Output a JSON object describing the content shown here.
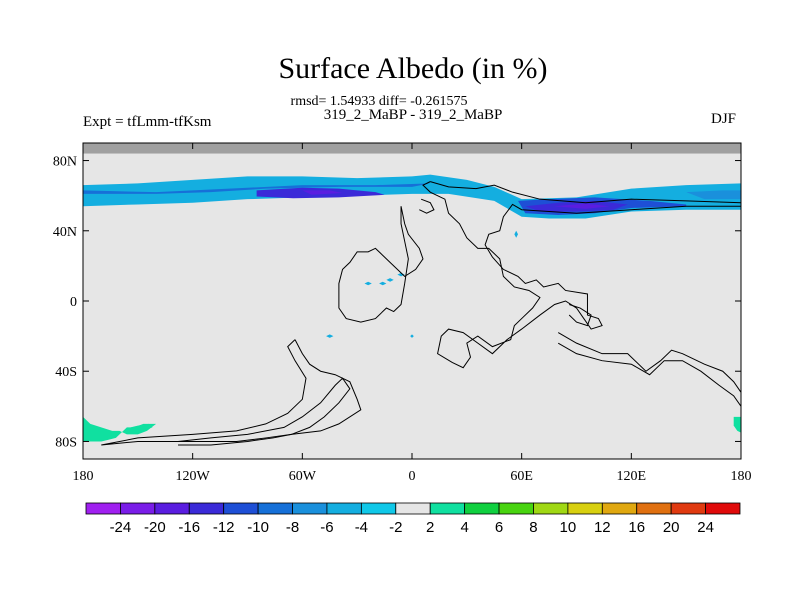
{
  "title": "Surface Albedo (in %)",
  "stats": "rmsd= 1.54933 diff= -0.261575",
  "subtitle": "319_2_MaBP - 319_2_MaBP",
  "left_label": "Expt = tfLmm-tfKsm",
  "right_label": "DJF",
  "chart_data": {
    "type": "heatmap",
    "title": "Surface Albedo (in %)",
    "x_axis": {
      "range": [
        -180,
        180
      ],
      "ticks": [
        {
          "value": -180,
          "label": "180"
        },
        {
          "value": -120,
          "label": "120W"
        },
        {
          "value": -60,
          "label": "60W"
        },
        {
          "value": 0,
          "label": "0"
        },
        {
          "value": 60,
          "label": "60E"
        },
        {
          "value": 120,
          "label": "120E"
        },
        {
          "value": 180,
          "label": "180"
        }
      ]
    },
    "y_axis": {
      "range": [
        -90,
        90
      ],
      "ticks": [
        {
          "value": 80,
          "label": "80N"
        },
        {
          "value": 40,
          "label": "40N"
        },
        {
          "value": 0,
          "label": "0"
        },
        {
          "value": -40,
          "label": "40S"
        },
        {
          "value": -80,
          "label": "80S"
        }
      ]
    },
    "missing_region": {
      "lat_min": 84,
      "lat_max": 90,
      "color": "#a0a0a0"
    },
    "background": {
      "level": "-2 to 2",
      "color": "#e6e6e6"
    },
    "colorbar": {
      "labels": [
        "-24",
        "-20",
        "-16",
        "-12",
        "-10",
        "-8",
        "-6",
        "-4",
        "-2",
        "2",
        "4",
        "6",
        "8",
        "10",
        "12",
        "16",
        "20",
        "24"
      ],
      "colors": [
        "#a020f0",
        "#7a1de8",
        "#5a1de0",
        "#3b2ad8",
        "#1e4fd6",
        "#1670d8",
        "#1a90dc",
        "#14aee0",
        "#10c8e8",
        "#e6e6e6",
        "#10e0a0",
        "#10d040",
        "#48d410",
        "#a0d814",
        "#d8d010",
        "#e0a810",
        "#e07010",
        "#e03a10",
        "#e00a0a"
      ]
    },
    "anomalies": [
      {
        "region": "northern mid-latitude band",
        "lat": [
          52,
          68
        ],
        "lon": [
          -180,
          180
        ],
        "range": "-4 to -24",
        "dominant": "-6 to -4"
      },
      {
        "region": "central-west band",
        "lat": [
          57,
          64
        ],
        "lon": [
          -85,
          -15
        ],
        "range": "-12 to -16"
      },
      {
        "region": "eastern band",
        "lat": [
          48,
          57
        ],
        "lon": [
          60,
          120
        ],
        "range": "-10 to -20"
      },
      {
        "region": "southern polar coast",
        "lat": [
          -82,
          -68
        ],
        "lon": [
          -180,
          -140
        ],
        "range": "2 to 4"
      },
      {
        "region": "far east southern coast",
        "lat": [
          -75,
          -66
        ],
        "lon": [
          176,
          180
        ],
        "range": "2 to 4"
      }
    ]
  }
}
